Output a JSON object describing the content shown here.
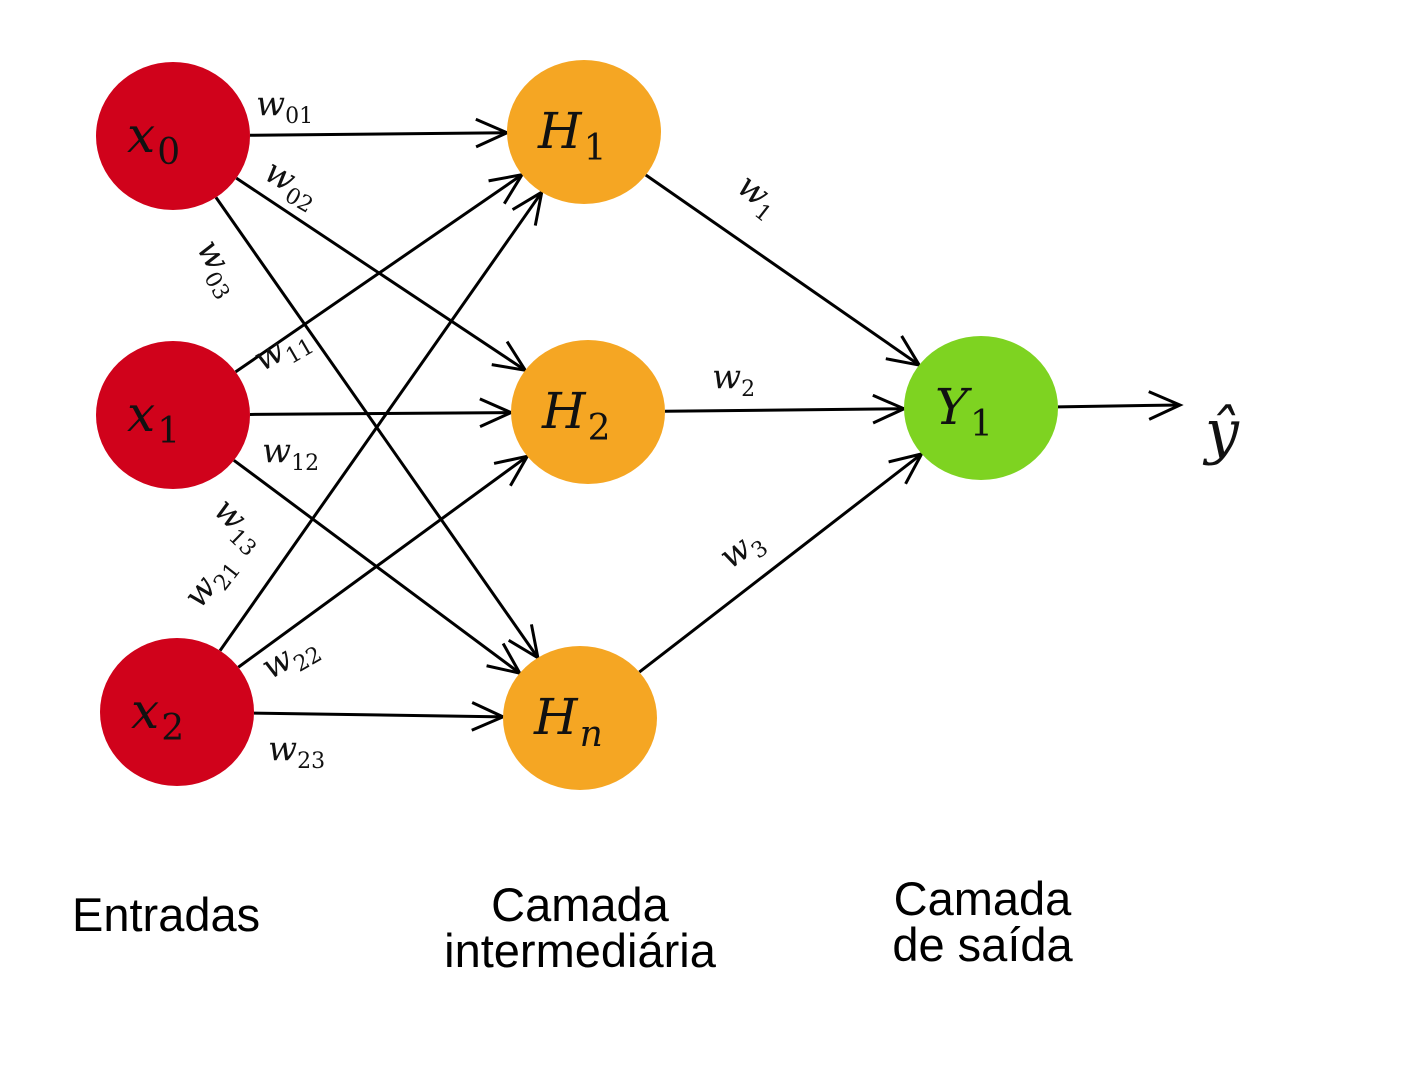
{
  "colors": {
    "input": "#D0021B",
    "hidden": "#F5A623",
    "output": "#7ED321",
    "edge": "#000000"
  },
  "nodes": [
    {
      "id": "x0",
      "main": "x",
      "sub": "0",
      "layer": "input"
    },
    {
      "id": "x1",
      "main": "x",
      "sub": "1",
      "layer": "input"
    },
    {
      "id": "x2",
      "main": "x",
      "sub": "2",
      "layer": "input"
    },
    {
      "id": "H1",
      "main": "H",
      "sub": "1",
      "layer": "hidden"
    },
    {
      "id": "H2",
      "main": "H",
      "sub": "2",
      "layer": "hidden"
    },
    {
      "id": "Hn",
      "main": "H",
      "sub": "n",
      "layer": "hidden"
    },
    {
      "id": "Y1",
      "main": "Y",
      "sub": "1",
      "layer": "output"
    }
  ],
  "edges": [
    {
      "from": "x0",
      "to": "H1",
      "w": "w",
      "sub": "01"
    },
    {
      "from": "x0",
      "to": "H2",
      "w": "w",
      "sub": "02"
    },
    {
      "from": "x0",
      "to": "Hn",
      "w": "w",
      "sub": "03"
    },
    {
      "from": "x1",
      "to": "H1",
      "w": "w",
      "sub": "11"
    },
    {
      "from": "x1",
      "to": "H2",
      "w": "w",
      "sub": "12"
    },
    {
      "from": "x1",
      "to": "Hn",
      "w": "w",
      "sub": "13"
    },
    {
      "from": "x2",
      "to": "H1",
      "w": "w",
      "sub": "21"
    },
    {
      "from": "x2",
      "to": "H2",
      "w": "w",
      "sub": "22"
    },
    {
      "from": "x2",
      "to": "Hn",
      "w": "w",
      "sub": "23"
    },
    {
      "from": "H1",
      "to": "Y1",
      "w": "w",
      "sub": "1"
    },
    {
      "from": "H2",
      "to": "Y1",
      "w": "w",
      "sub": "2"
    },
    {
      "from": "Hn",
      "to": "Y1",
      "w": "w",
      "sub": "3"
    },
    {
      "from": "Y1",
      "to": "yhat",
      "w": "",
      "sub": ""
    }
  ],
  "output_symbol": "ŷ",
  "captions": {
    "inputs": "Entradas",
    "hidden_line1": "Camada",
    "hidden_line2": "intermediária",
    "output_line1": "Camada",
    "output_line2": "de saída"
  }
}
